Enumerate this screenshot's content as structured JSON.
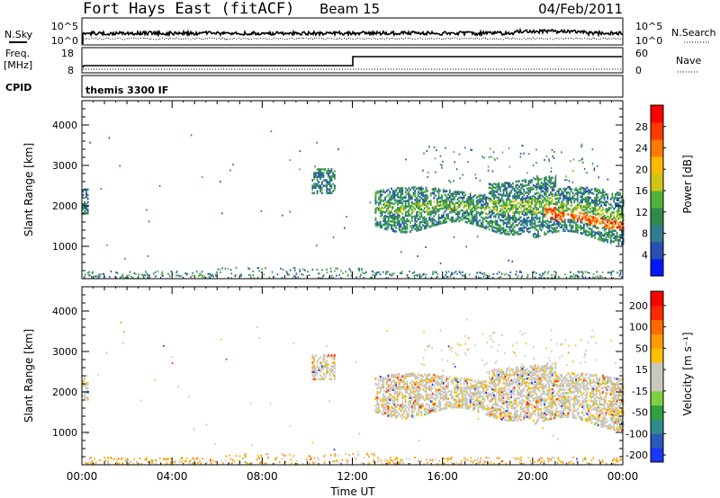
{
  "header": {
    "station": "Fort Hays East (fitACF)",
    "beam": "Beam 15",
    "date": "04/Feb/2011"
  },
  "top_panels": {
    "nsky_label": "N.Sky",
    "nsky_ticks": [
      "10^5",
      "10^0"
    ],
    "nsearch_label": "N.Search",
    "nsearch_ticks": [
      "10^5",
      "10^0"
    ],
    "freq_label": "Freq.",
    "freq_unit": "[MHz]",
    "freq_ticks": [
      "18",
      "8"
    ],
    "nave_label": "Nave",
    "nave_ticks": [
      "60",
      "0"
    ],
    "cpid_label": "CPID",
    "cpid_value": "themis 3300 IF"
  },
  "chart_data": [
    {
      "type": "heatmap",
      "name": "power",
      "ylabel": "Slant Range [km]",
      "ylim": [
        200,
        4600
      ],
      "yticks": [
        "1000",
        "2000",
        "3000",
        "4000"
      ],
      "xlim": [
        0,
        24
      ],
      "colorbar": {
        "label": "Power [dB]",
        "ticks": [
          "4",
          "8",
          "12",
          "16",
          "20",
          "24",
          "28"
        ],
        "colors": [
          "#0016ff",
          "#2a4fb0",
          "#2f7d8f",
          "#2f8a4a",
          "#4fb33a",
          "#cfc418",
          "#ffb800",
          "#ff7a00",
          "#ff3a00",
          "#ff0000"
        ]
      }
    },
    {
      "type": "heatmap",
      "name": "velocity",
      "ylabel": "Slant Range [km]",
      "ylim": [
        200,
        4600
      ],
      "yticks": [
        "1000",
        "2000",
        "3000",
        "4000"
      ],
      "xlim": [
        0,
        24
      ],
      "xlabel": "Time UT",
      "xticks": [
        "00:00",
        "04:00",
        "08:00",
        "12:00",
        "16:00",
        "20:00",
        "00:00"
      ],
      "colorbar": {
        "label": "Velocity [m s⁻¹]",
        "ticks": [
          "200",
          "100",
          "50",
          "15",
          "-15",
          "-50",
          "-100",
          "-200"
        ],
        "colors": [
          "#1a36ff",
          "#2a5ab8",
          "#2f8a8a",
          "#30a040",
          "#7fd040",
          "#c8c8c0",
          "#c8c8c0",
          "#ffc000",
          "#ff9a00",
          "#ff6a00",
          "#ff2a00",
          "#ff0000"
        ]
      }
    }
  ]
}
